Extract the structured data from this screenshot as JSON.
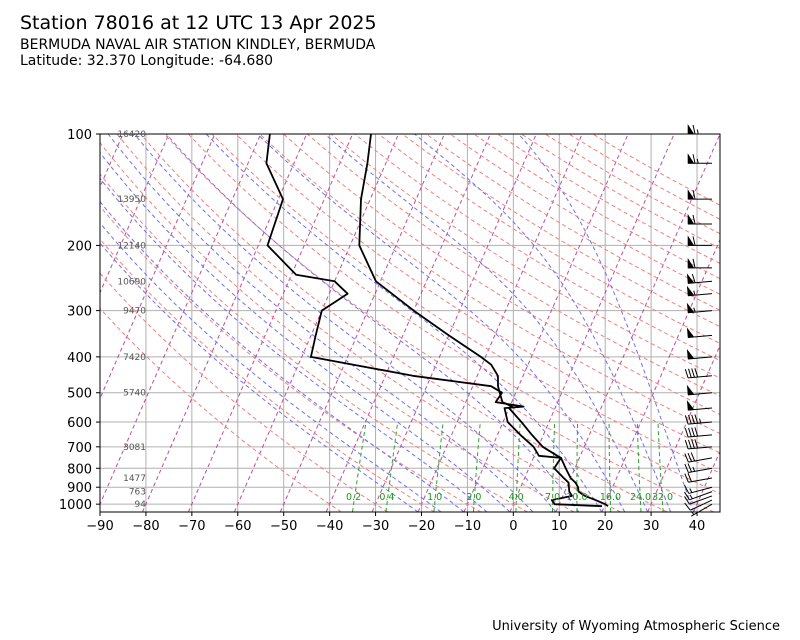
{
  "header": {
    "title": "Station 78016 at 12 UTC 13 Apr 2025",
    "station_name": "BERMUDA NAVAL AIR STATION KINDLEY, BERMUDA",
    "location": "Latitude: 32.370 Longitude: -64.680"
  },
  "credit": "University of Wyoming Atmospheric Science",
  "colors": {
    "grid": "#b0b0b0",
    "dry_adiabat": "#f08080",
    "moist_adiabat": "#7070f0",
    "isotherm": "#b03080",
    "mixing_ratio": "#30a030",
    "profile": "#000000"
  },
  "chart_data": {
    "type": "skew-t",
    "x_axis": {
      "label": "",
      "range": [
        -90,
        45
      ],
      "ticks": [
        -90,
        -80,
        -70,
        -60,
        -50,
        -40,
        -30,
        -20,
        -10,
        0,
        10,
        20,
        30,
        40
      ]
    },
    "y_axis": {
      "label": "",
      "scale": "log",
      "range": [
        1050,
        100
      ],
      "ticks": [
        100,
        200,
        300,
        400,
        500,
        600,
        700,
        800,
        900,
        1000
      ]
    },
    "grid": true,
    "height_labels": [
      {
        "p": 100,
        "h": "16420"
      },
      {
        "p": 150,
        "h": "13950"
      },
      {
        "p": 200,
        "h": "12140"
      },
      {
        "p": 250,
        "h": "10690"
      },
      {
        "p": 300,
        "h": "9470"
      },
      {
        "p": 400,
        "h": "7420"
      },
      {
        "p": 500,
        "h": "5740"
      },
      {
        "p": 700,
        "h": "3081"
      },
      {
        "p": 850,
        "h": "1477"
      },
      {
        "p": 925,
        "h": "763"
      },
      {
        "p": 1000,
        "h": "94"
      }
    ],
    "mixing_ratio_labels": [
      "0.2",
      "0.4",
      "1.0",
      "2.0",
      "4.0",
      "7.0",
      "10.0",
      "16.0",
      "24.0",
      "32.0"
    ],
    "temperature": {
      "p": [
        1013,
        1000,
        975,
        950,
        925,
        900,
        875,
        850,
        800,
        750,
        740,
        700,
        650,
        600,
        550,
        545,
        530,
        500,
        480,
        450,
        420,
        400,
        350,
        300,
        250,
        200,
        150,
        120,
        100
      ],
      "t": [
        20.8,
        20.0,
        17.5,
        14.8,
        13.0,
        12.5,
        11.5,
        10.0,
        8.0,
        6.0,
        5.0,
        1.0,
        -2.5,
        -6.0,
        -10.0,
        -9.5,
        -12.0,
        -13.5,
        -14.5,
        -15.5,
        -18.0,
        -21.0,
        -30.0,
        -40.0,
        -51.0,
        -58.0,
        -62.0,
        -64.0,
        -66.0
      ]
    },
    "dewpoint": {
      "p": [
        1013,
        1000,
        975,
        950,
        925,
        900,
        875,
        850,
        800,
        750,
        740,
        700,
        650,
        600,
        550,
        545,
        530,
        500,
        480,
        450,
        420,
        400,
        350,
        300,
        270,
        250,
        240,
        200,
        150,
        120,
        100
      ],
      "td": [
        19.5,
        9.0,
        8.0,
        12.0,
        11.0,
        10.5,
        10.0,
        8.5,
        5.5,
        6.0,
        1.0,
        -1.0,
        -5.0,
        -9.0,
        -11.0,
        -7.0,
        -13.5,
        -13.0,
        -16.0,
        -34.0,
        -48.0,
        -58.0,
        -59.0,
        -60.0,
        -56.0,
        -60.0,
        -69.0,
        -78.0,
        -79.0,
        -86.0,
        -88.0
      ]
    },
    "wind_barbs": [
      {
        "p": 1000,
        "dir": 240,
        "spd": 5
      },
      {
        "p": 975,
        "dir": 245,
        "spd": 10
      },
      {
        "p": 950,
        "dir": 250,
        "spd": 10
      },
      {
        "p": 925,
        "dir": 250,
        "spd": 15
      },
      {
        "p": 900,
        "dir": 255,
        "spd": 15
      },
      {
        "p": 850,
        "dir": 260,
        "spd": 20
      },
      {
        "p": 800,
        "dir": 260,
        "spd": 25
      },
      {
        "p": 750,
        "dir": 260,
        "spd": 30
      },
      {
        "p": 700,
        "dir": 265,
        "spd": 40
      },
      {
        "p": 650,
        "dir": 265,
        "spd": 40
      },
      {
        "p": 600,
        "dir": 265,
        "spd": 45
      },
      {
        "p": 550,
        "dir": 265,
        "spd": 50
      },
      {
        "p": 500,
        "dir": 265,
        "spd": 50
      },
      {
        "p": 450,
        "dir": 265,
        "spd": 40
      },
      {
        "p": 400,
        "dir": 265,
        "spd": 50
      },
      {
        "p": 350,
        "dir": 265,
        "spd": 50
      },
      {
        "p": 300,
        "dir": 265,
        "spd": 55
      },
      {
        "p": 270,
        "dir": 265,
        "spd": 55
      },
      {
        "p": 250,
        "dir": 265,
        "spd": 60
      },
      {
        "p": 230,
        "dir": 270,
        "spd": 60
      },
      {
        "p": 200,
        "dir": 270,
        "spd": 60
      },
      {
        "p": 175,
        "dir": 270,
        "spd": 60
      },
      {
        "p": 150,
        "dir": 270,
        "spd": 60
      },
      {
        "p": 120,
        "dir": 270,
        "spd": 65
      },
      {
        "p": 100,
        "dir": 270,
        "spd": 65
      }
    ]
  }
}
